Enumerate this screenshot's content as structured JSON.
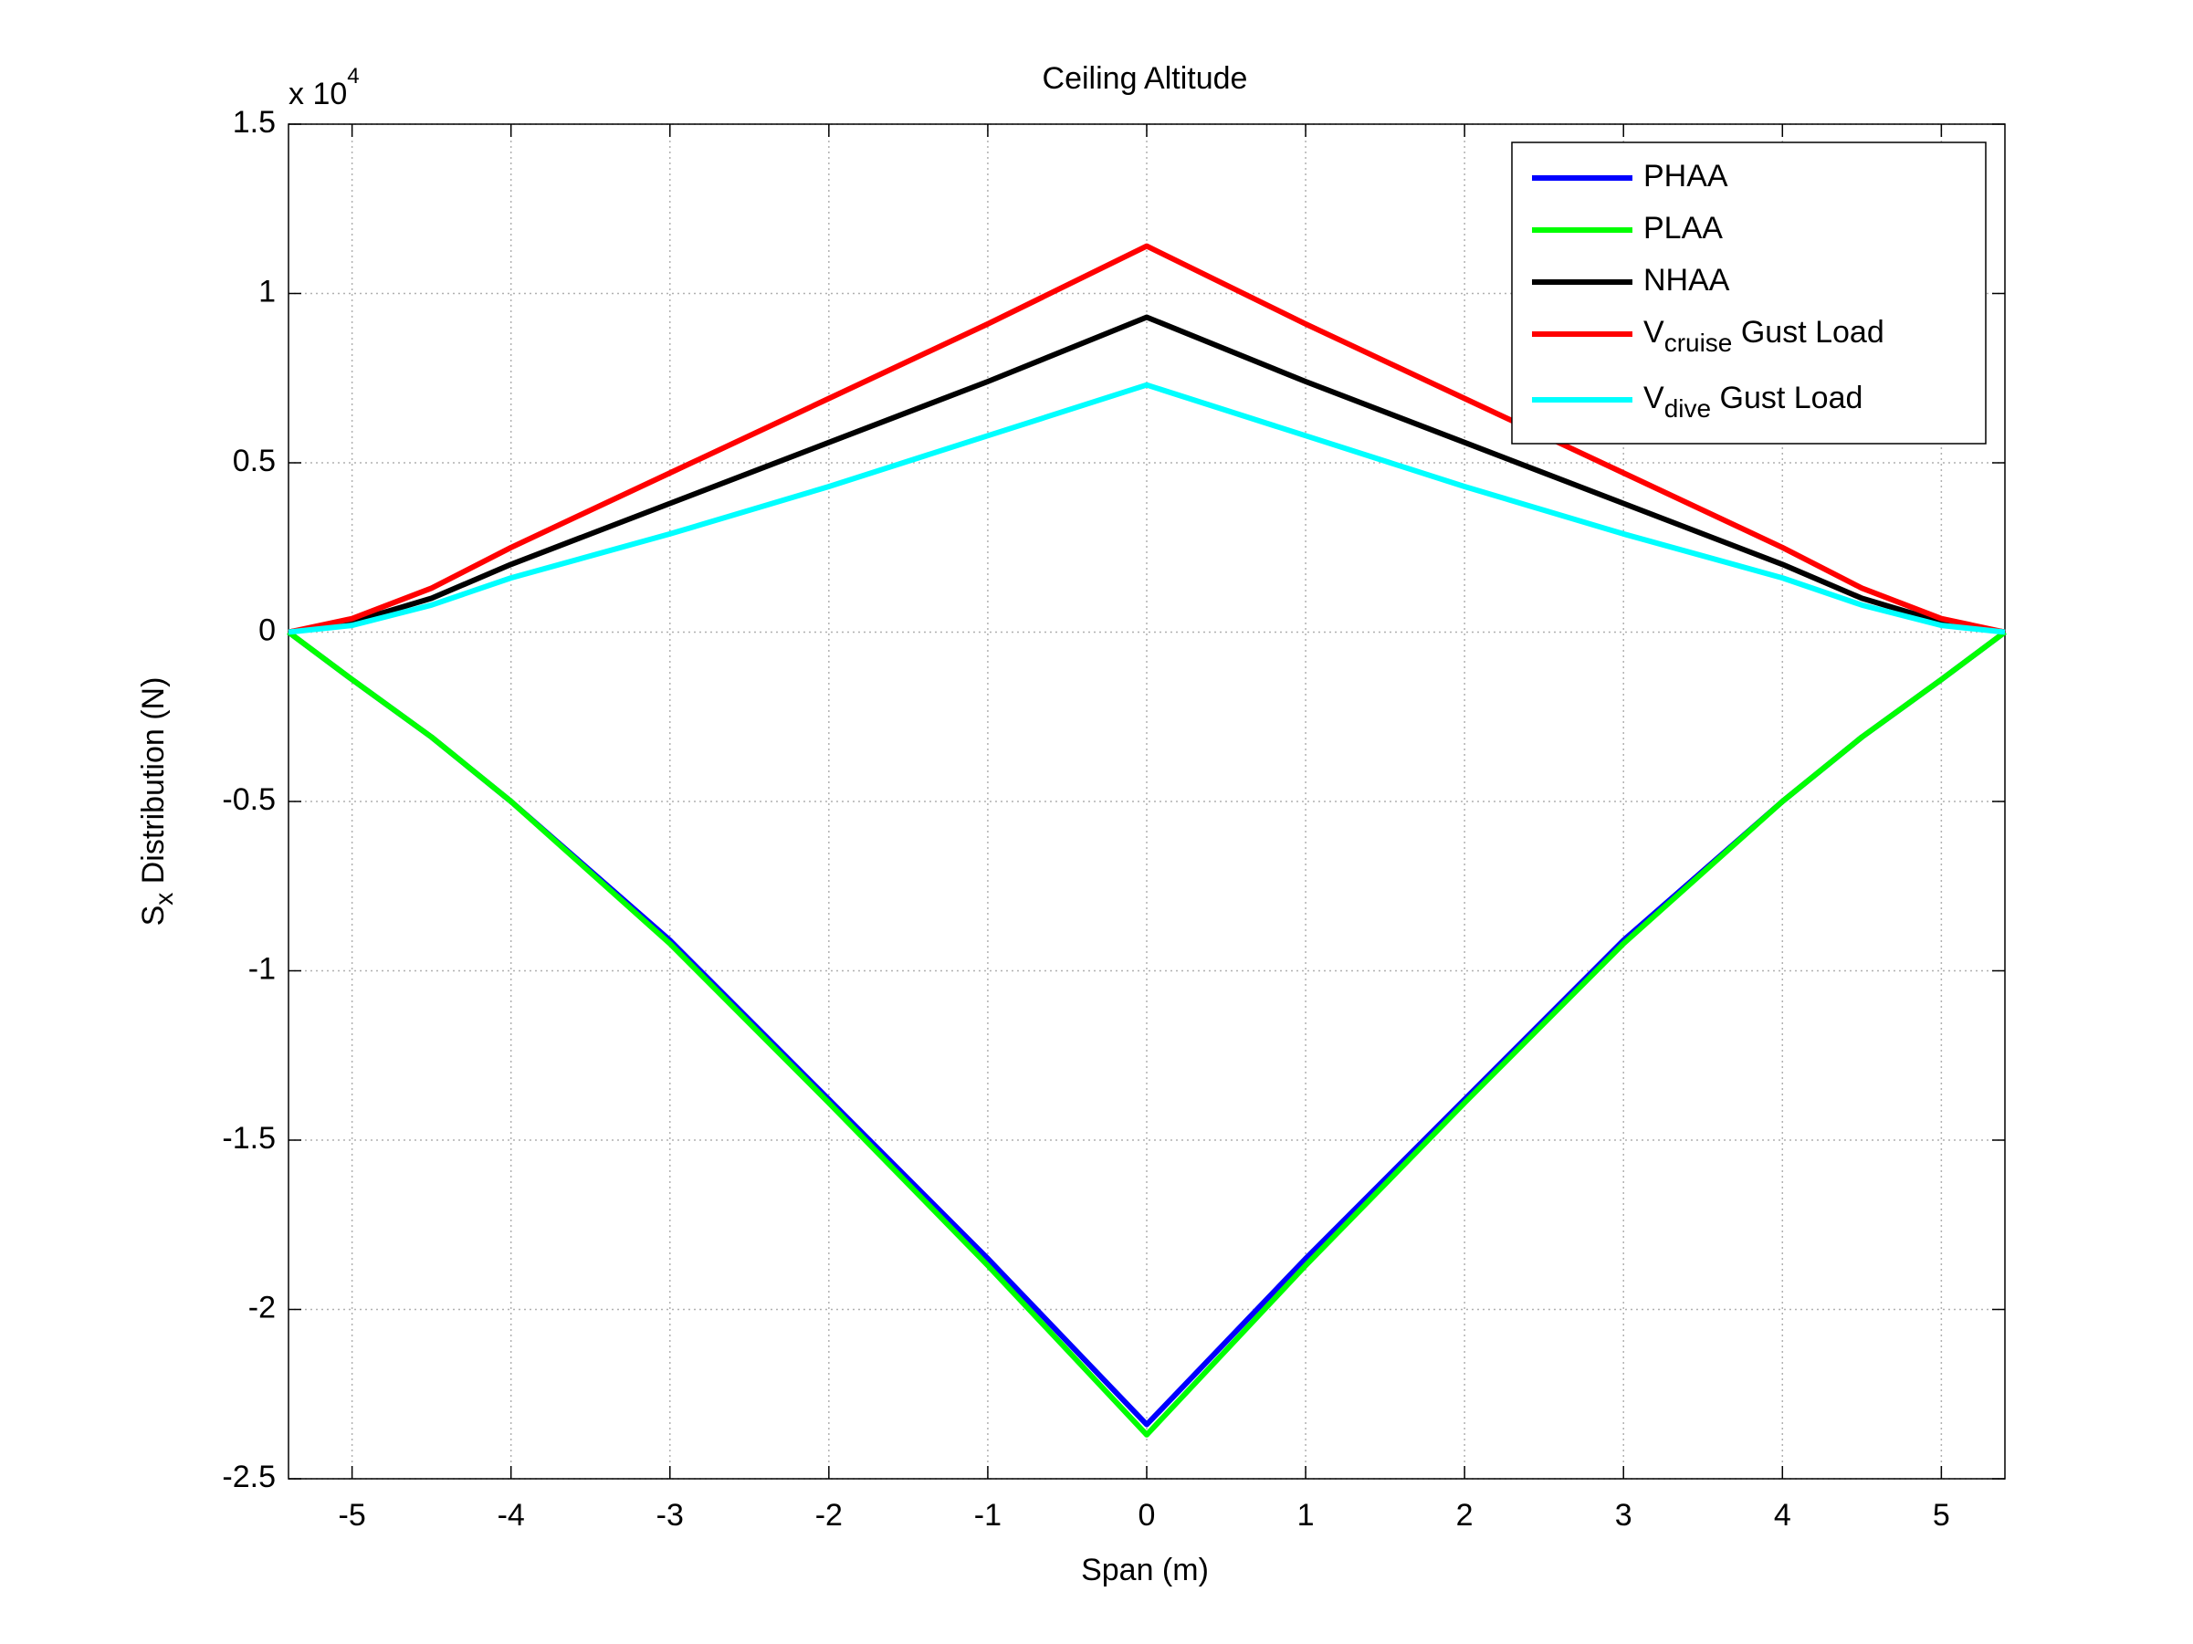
{
  "chart_data": {
    "type": "line",
    "title": "Ceiling Altitude",
    "xlabel": "Span (m)",
    "ylabel": {
      "text": "S",
      "sub": "x",
      "tail": " Distribution (N)"
    },
    "y_multiplier": {
      "text": "x 10",
      "sup": "4"
    },
    "x": [
      -5.4,
      -5,
      -4.5,
      -4,
      -3,
      -2,
      -1,
      0,
      1,
      2,
      3,
      4,
      4.5,
      5,
      5.4
    ],
    "series": [
      {
        "name": "PHAA",
        "color": "#0000ff",
        "values": [
          0,
          -0.14,
          -0.31,
          -0.5,
          -0.91,
          -1.38,
          -1.85,
          -2.34,
          -1.85,
          -1.38,
          -0.91,
          -0.5,
          -0.31,
          -0.14,
          0
        ]
      },
      {
        "name": "PLAA",
        "color": "#00ff00",
        "values": [
          0,
          -0.14,
          -0.31,
          -0.5,
          -0.92,
          -1.39,
          -1.87,
          -2.37,
          -1.87,
          -1.39,
          -0.92,
          -0.5,
          -0.31,
          -0.14,
          0
        ]
      },
      {
        "name": "NHAA",
        "color": "#000000",
        "values": [
          0,
          0.03,
          0.1,
          0.2,
          0.38,
          0.56,
          0.74,
          0.93,
          0.74,
          0.56,
          0.38,
          0.2,
          0.1,
          0.03,
          0
        ]
      },
      {
        "name": {
          "text": "V",
          "sub": "cruise",
          "tail": " Gust Load"
        },
        "color": "#ff0000",
        "values": [
          0,
          0.04,
          0.13,
          0.25,
          0.47,
          0.69,
          0.91,
          1.14,
          0.91,
          0.69,
          0.47,
          0.25,
          0.13,
          0.04,
          0
        ]
      },
      {
        "name": {
          "text": "V",
          "sub": "dive",
          "tail": " Gust Load"
        },
        "color": "#00ffff",
        "values": [
          0,
          0.02,
          0.08,
          0.16,
          0.29,
          0.43,
          0.58,
          0.73,
          0.58,
          0.43,
          0.29,
          0.16,
          0.08,
          0.02,
          0
        ]
      }
    ],
    "xlim": [
      -5.4,
      5.4
    ],
    "xticks": [
      -5,
      -4,
      -3,
      -2,
      -1,
      0,
      1,
      2,
      3,
      4,
      5
    ],
    "ylim": [
      -2.5,
      1.5
    ],
    "yticks": [
      -2.5,
      -2,
      -1.5,
      -1,
      -0.5,
      0,
      0.5,
      1,
      1.5
    ],
    "grid": true,
    "legend": "upper right"
  }
}
